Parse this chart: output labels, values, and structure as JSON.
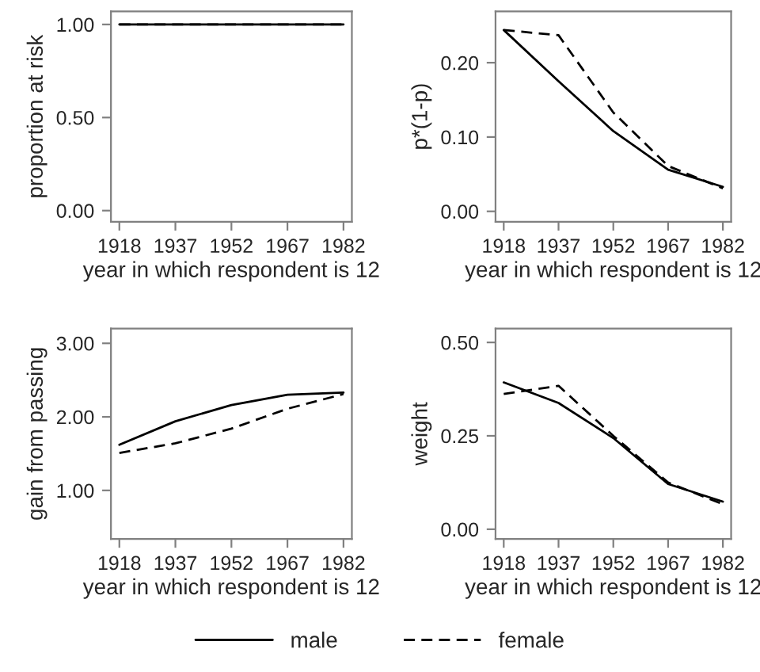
{
  "chart_data": [
    {
      "type": "line",
      "xlabel": "year in which respondent is 12",
      "ylabel": "proportion at risk",
      "categories": [
        "1918",
        "1937",
        "1952",
        "1967",
        "1982"
      ],
      "ylim": [
        -0.06,
        1.07
      ],
      "yticks": [
        {
          "value": 0,
          "label": "0.00"
        },
        {
          "value": 0.5,
          "label": "0.50"
        },
        {
          "value": 1,
          "label": "1.00"
        }
      ],
      "grid": false,
      "legend": "bottom",
      "series": [
        {
          "name": "male",
          "color": "#000000",
          "line_style": "solid",
          "values": [
            1,
            1,
            1,
            1,
            1
          ]
        },
        {
          "name": "female",
          "color": "#000000",
          "line_style": "dashed",
          "values": [
            1,
            1,
            1,
            1,
            1
          ]
        }
      ]
    },
    {
      "type": "line",
      "xlabel": "year in which respondent is 12",
      "ylabel": "p*(1-p)",
      "categories": [
        "1918",
        "1937",
        "1952",
        "1967",
        "1982"
      ],
      "ylim": [
        -0.014,
        0.269
      ],
      "yticks": [
        {
          "value": 0,
          "label": "0.00"
        },
        {
          "value": 0.1,
          "label": "0.10"
        },
        {
          "value": 0.2,
          "label": "0.20"
        }
      ],
      "grid": false,
      "series": [
        {
          "color": "#000000",
          "line_style": "solid",
          "values": [
            0.244,
            0.175,
            0.108,
            0.056,
            0.033
          ]
        },
        {
          "color": "#000000",
          "line_style": "dashed",
          "values": [
            0.244,
            0.237,
            0.133,
            0.061,
            0.031
          ]
        }
      ]
    },
    {
      "type": "line",
      "xlabel": "year in which respondent is 12",
      "ylabel": "gain from passing",
      "categories": [
        "1918",
        "1937",
        "1952",
        "1967",
        "1982"
      ],
      "ylim": [
        0.34,
        3.2
      ],
      "yticks": [
        {
          "value": 1,
          "label": "1.00"
        },
        {
          "value": 2,
          "label": "2.00"
        },
        {
          "value": 3,
          "label": "3.00"
        }
      ],
      "grid": false,
      "series": [
        {
          "color": "#000000",
          "line_style": "solid",
          "values": [
            1.62,
            1.94,
            2.16,
            2.3,
            2.33
          ]
        },
        {
          "color": "#000000",
          "line_style": "dashed",
          "values": [
            1.51,
            1.64,
            1.84,
            2.11,
            2.31
          ]
        }
      ]
    },
    {
      "type": "line",
      "xlabel": "year in which respondent is 12",
      "ylabel": "weight",
      "categories": [
        "1918",
        "1937",
        "1952",
        "1967",
        "1982"
      ],
      "ylim": [
        -0.026,
        0.537
      ],
      "yticks": [
        {
          "value": 0,
          "label": "0.00"
        },
        {
          "value": 0.25,
          "label": "0.25"
        },
        {
          "value": 0.5,
          "label": "0.50"
        }
      ],
      "grid": false,
      "series": [
        {
          "color": "#000000",
          "line_style": "solid",
          "values": [
            0.393,
            0.338,
            0.244,
            0.121,
            0.074
          ]
        },
        {
          "color": "#000000",
          "line_style": "dashed",
          "values": [
            0.362,
            0.384,
            0.25,
            0.125,
            0.067
          ]
        }
      ]
    }
  ]
}
